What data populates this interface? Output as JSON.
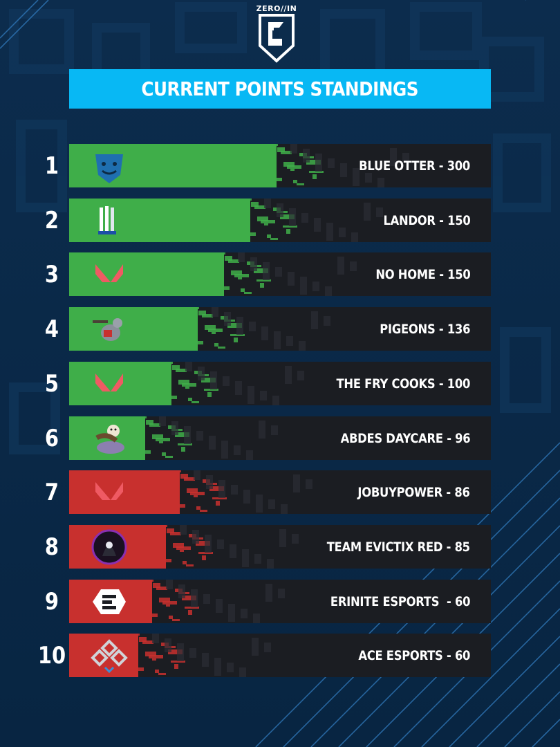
{
  "brand": {
    "logo_text": "ZERO//IN",
    "logo_icon": "zero-in-shield-icon"
  },
  "header": {
    "title": "CURRENT POINTS STANDINGS"
  },
  "colors": {
    "background": "#0b2a4a",
    "title_bar": "#08b8f4",
    "row_bar": "#1b1d22",
    "green": "#3fae49",
    "red": "#c8302e",
    "text": "#ffffff"
  },
  "standings": [
    {
      "rank": "1",
      "label": "BLUE OTTER - 300",
      "tier": "green",
      "icon": "blue-otter-icon"
    },
    {
      "rank": "2",
      "label": "LANDOR - 150",
      "tier": "green",
      "icon": "landor-icon"
    },
    {
      "rank": "3",
      "label": "NO HOME - 150",
      "tier": "green",
      "icon": "valorant-icon"
    },
    {
      "rank": "4",
      "label": "PIGEONS - 136",
      "tier": "green",
      "icon": "pigeon-icon"
    },
    {
      "rank": "5",
      "label": "THE FRY COOKS - 100",
      "tier": "green",
      "icon": "valorant-icon"
    },
    {
      "rank": "6",
      "label": "ABDES DAYCARE - 96",
      "tier": "green",
      "icon": "otter-icon"
    },
    {
      "rank": "7",
      "label": "JOBUYPOWER - 86",
      "tier": "red",
      "icon": "valorant-icon"
    },
    {
      "rank": "8",
      "label": "TEAM EVICTIX RED - 85",
      "tier": "red",
      "icon": "reaper-icon"
    },
    {
      "rank": "9",
      "label": "ERINITE ESPORTS  - 60",
      "tier": "red",
      "icon": "erinite-icon"
    },
    {
      "rank": "10",
      "label": "ACE ESPORTS - 60",
      "tier": "red",
      "icon": "ace-icon"
    }
  ]
}
